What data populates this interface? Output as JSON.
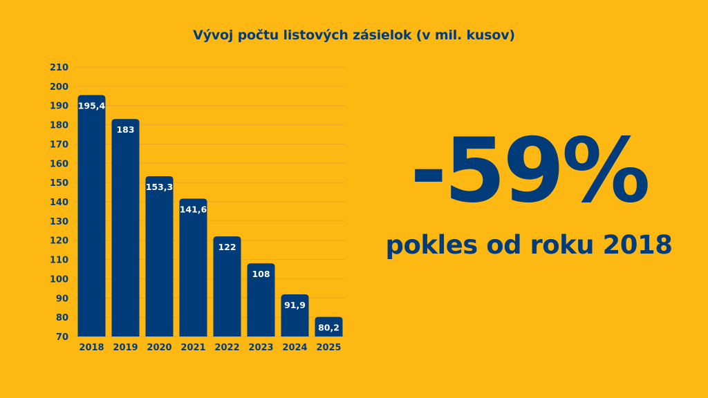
{
  "colors": {
    "background": "#FDB813",
    "primary": "#003B7A",
    "bar_label": "#FFFFFF",
    "grid": "#E9A62B"
  },
  "headline": {
    "value": "-59%",
    "subtitle": "pokles od roku 2018"
  },
  "chart_data": {
    "type": "bar",
    "title": "Vývoj počtu listových zásielok (v mil. kusov)",
    "xlabel": "",
    "ylabel": "",
    "categories": [
      "2018",
      "2019",
      "2020",
      "2021",
      "2022",
      "2023",
      "2024",
      "2025"
    ],
    "values": [
      195.4,
      183,
      153.3,
      141.6,
      122,
      108,
      91.9,
      80.2
    ],
    "value_labels": [
      "195,4",
      "183",
      "153,3",
      "141,6",
      "122",
      "108",
      "91,9",
      "80,2"
    ],
    "ylim": [
      70,
      210
    ],
    "yticks": [
      70,
      80,
      90,
      100,
      110,
      120,
      130,
      140,
      150,
      160,
      170,
      180,
      190,
      200,
      210
    ],
    "grid": true,
    "legend": "none"
  }
}
